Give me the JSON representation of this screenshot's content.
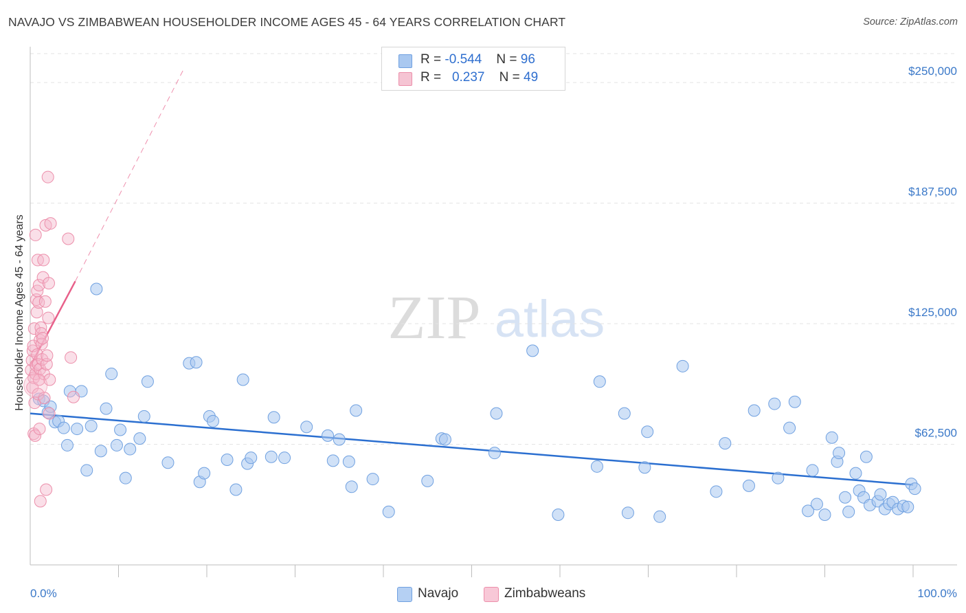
{
  "title": "NAVAJO VS ZIMBABWEAN HOUSEHOLDER INCOME AGES 45 - 64 YEARS CORRELATION CHART",
  "source": "Source: ZipAtlas.com",
  "watermark": {
    "zip": "ZIP",
    "atlas": "atlas"
  },
  "legend": {
    "navajo": {
      "r_label": "R =",
      "r_value": "-0.544",
      "n_label": "N =",
      "n_value": "96"
    },
    "zimbabweans": {
      "r_label": "R =",
      "r_value": "0.237",
      "n_label": "N =",
      "n_value": "49"
    }
  },
  "bottom_legend": {
    "navajo": "Navajo",
    "zimbabweans": "Zimbabweans"
  },
  "colors": {
    "navajo_fill": "#a9c8f0",
    "navajo_stroke": "#6fa0e0",
    "navajo_line": "#2b6fd0",
    "zimb_fill": "#f5b8cb",
    "zimb_stroke": "#ec8eaa",
    "zimb_line": "#e8608a",
    "tick_label": "#3a78c8",
    "grid": "#e3e3e3"
  },
  "chart_data": {
    "type": "scatter",
    "title": "NAVAJO VS ZIMBABWEAN HOUSEHOLDER INCOME AGES 45 - 64 YEARS CORRELATION CHART",
    "xlabel": "",
    "ylabel": "Householder Income Ages 45 - 64 years",
    "xlim": [
      0,
      100
    ],
    "ylim": [
      0,
      265000
    ],
    "x_tick_labels": [
      "0.0%",
      "100.0%"
    ],
    "y_ticks": [
      62500,
      125000,
      187500,
      250000
    ],
    "y_tick_labels": [
      "$62,500",
      "$125,000",
      "$187,500",
      "$250,000"
    ],
    "series": [
      {
        "name": "Navajo",
        "trend": {
          "x0": 0,
          "y0": 78500,
          "x1": 100,
          "y1": 41500
        },
        "points": [
          [
            1.0,
            86000
          ],
          [
            1.5,
            85000
          ],
          [
            2.0,
            79000
          ],
          [
            2.3,
            82000
          ],
          [
            2.8,
            74000
          ],
          [
            3.2,
            74500
          ],
          [
            3.8,
            71000
          ],
          [
            4.2,
            62000
          ],
          [
            4.5,
            90000
          ],
          [
            5.3,
            70500
          ],
          [
            5.8,
            90000
          ],
          [
            6.4,
            49000
          ],
          [
            6.9,
            72000
          ],
          [
            7.5,
            143000
          ],
          [
            8.0,
            59000
          ],
          [
            8.6,
            81000
          ],
          [
            9.2,
            99000
          ],
          [
            9.8,
            62000
          ],
          [
            10.2,
            70000
          ],
          [
            10.8,
            45000
          ],
          [
            11.3,
            60000
          ],
          [
            12.4,
            65500
          ],
          [
            12.9,
            77000
          ],
          [
            13.3,
            95000
          ],
          [
            15.6,
            53000
          ],
          [
            18.0,
            104500
          ],
          [
            18.8,
            105000
          ],
          [
            19.2,
            43000
          ],
          [
            19.7,
            47500
          ],
          [
            20.3,
            77000
          ],
          [
            20.7,
            74500
          ],
          [
            22.3,
            54500
          ],
          [
            23.3,
            39000
          ],
          [
            24.1,
            96000
          ],
          [
            24.6,
            52500
          ],
          [
            25.0,
            55500
          ],
          [
            27.3,
            56000
          ],
          [
            27.6,
            76500
          ],
          [
            28.8,
            55500
          ],
          [
            31.3,
            71500
          ],
          [
            33.7,
            67000
          ],
          [
            34.3,
            54000
          ],
          [
            35.0,
            65000
          ],
          [
            36.1,
            53500
          ],
          [
            36.4,
            40500
          ],
          [
            36.9,
            80000
          ],
          [
            38.8,
            44500
          ],
          [
            40.6,
            27500
          ],
          [
            45.0,
            43500
          ],
          [
            46.6,
            65500
          ],
          [
            47.0,
            65000
          ],
          [
            52.6,
            58000
          ],
          [
            52.8,
            78500
          ],
          [
            56.9,
            111000
          ],
          [
            59.8,
            26000
          ],
          [
            64.2,
            51000
          ],
          [
            64.5,
            95000
          ],
          [
            67.3,
            78500
          ],
          [
            67.7,
            27000
          ],
          [
            69.6,
            50500
          ],
          [
            69.9,
            69000
          ],
          [
            71.3,
            25000
          ],
          [
            73.9,
            103000
          ],
          [
            77.7,
            38000
          ],
          [
            78.7,
            63000
          ],
          [
            81.4,
            41000
          ],
          [
            82.0,
            80000
          ],
          [
            84.3,
            83500
          ],
          [
            84.7,
            45000
          ],
          [
            86.0,
            71000
          ],
          [
            86.6,
            84500
          ],
          [
            88.1,
            28000
          ],
          [
            88.6,
            49000
          ],
          [
            89.1,
            31500
          ],
          [
            90.0,
            26000
          ],
          [
            90.8,
            66000
          ],
          [
            91.4,
            53500
          ],
          [
            91.6,
            58000
          ],
          [
            92.3,
            35000
          ],
          [
            92.7,
            27500
          ],
          [
            93.5,
            47500
          ],
          [
            93.9,
            38500
          ],
          [
            94.7,
            56000
          ],
          [
            94.4,
            35000
          ],
          [
            95.1,
            31000
          ],
          [
            96.0,
            33000
          ],
          [
            96.3,
            36500
          ],
          [
            96.8,
            29000
          ],
          [
            97.3,
            31500
          ],
          [
            97.7,
            32500
          ],
          [
            98.3,
            29000
          ],
          [
            98.9,
            30500
          ],
          [
            99.4,
            30000
          ],
          [
            99.8,
            42000
          ],
          [
            100.2,
            39500
          ]
        ]
      },
      {
        "name": "Zimbabweans",
        "trend": {
          "x0": 0,
          "y0": 103000,
          "x1": 5.1,
          "y1": 147000
        },
        "trend_dashed": {
          "x0": 5.1,
          "y0": 147000,
          "x1": 17.5,
          "y1": 258000
        },
        "points": [
          [
            0.1,
            101000
          ],
          [
            0.2,
            106000
          ],
          [
            0.25,
            92000
          ],
          [
            0.3,
            111000
          ],
          [
            0.35,
            113500
          ],
          [
            0.4,
            97000
          ],
          [
            0.4,
            68000
          ],
          [
            0.45,
            122500
          ],
          [
            0.5,
            84000
          ],
          [
            0.55,
            67000
          ],
          [
            0.6,
            99000
          ],
          [
            0.6,
            171000
          ],
          [
            0.65,
            103500
          ],
          [
            0.7,
            137500
          ],
          [
            0.75,
            131000
          ],
          [
            0.8,
            109000
          ],
          [
            0.8,
            142000
          ],
          [
            0.85,
            158000
          ],
          [
            0.9,
            88500
          ],
          [
            0.9,
            104000
          ],
          [
            0.95,
            136000
          ],
          [
            1.0,
            96000
          ],
          [
            1.0,
            145000
          ],
          [
            1.05,
            70500
          ],
          [
            1.1,
            116500
          ],
          [
            1.1,
            101500
          ],
          [
            1.15,
            33000
          ],
          [
            1.2,
            123000
          ],
          [
            1.25,
            120000
          ],
          [
            1.3,
            114500
          ],
          [
            1.35,
            106500
          ],
          [
            1.4,
            117500
          ],
          [
            1.45,
            149000
          ],
          [
            1.5,
            158000
          ],
          [
            1.55,
            99000
          ],
          [
            1.6,
            86500
          ],
          [
            1.7,
            136500
          ],
          [
            1.75,
            176000
          ],
          [
            1.8,
            39000
          ],
          [
            1.85,
            104000
          ],
          [
            1.9,
            108500
          ],
          [
            2.0,
            201000
          ],
          [
            2.05,
            128000
          ],
          [
            2.1,
            146000
          ],
          [
            2.15,
            78500
          ],
          [
            2.2,
            96000
          ],
          [
            2.3,
            177000
          ],
          [
            4.3,
            169000
          ],
          [
            4.6,
            107500
          ],
          [
            4.9,
            87000
          ]
        ]
      }
    ]
  }
}
